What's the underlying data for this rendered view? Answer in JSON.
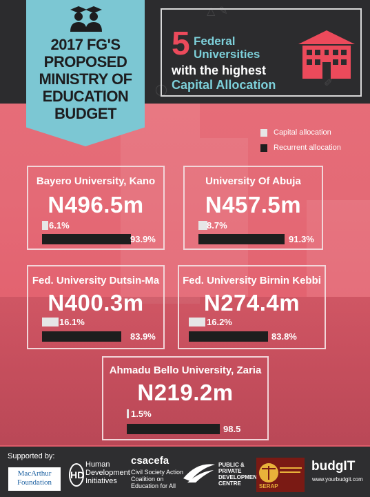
{
  "title_banner": {
    "line1": "2017 FG'S",
    "line2": "PROPOSED",
    "line3": "MINISTRY OF",
    "line4": "EDUCATION",
    "line5": "BUDGET",
    "icon": "graduates-icon",
    "color": "#7cc7d3"
  },
  "headline": {
    "number": "5",
    "line1": "Federal",
    "line2": "Universities",
    "line3": "with the highest",
    "line4": "Capital Allocation",
    "icon": "university-building-icon",
    "accent_color": "#ec4a5b",
    "teal_color": "#7dd0da"
  },
  "legend": {
    "capital_label": "Capital allocation",
    "recurrent_label": "Recurrent allocation",
    "capital_color": "#e6e6e6",
    "recurrent_color": "#1e1e1e"
  },
  "universities": [
    {
      "name": "Bayero University, Kano",
      "amount": "N496.5m",
      "capital_pct_label": "6.1%",
      "recurrent_pct_label": "93.9%",
      "capital_pct": 6.1,
      "recurrent_pct": 93.9
    },
    {
      "name": "University Of Abuja",
      "amount": "N457.5m",
      "capital_pct_label": "8.7%",
      "recurrent_pct_label": "91.3%",
      "capital_pct": 8.7,
      "recurrent_pct": 91.3
    },
    {
      "name": "Fed. University Dutsin-Ma",
      "amount": "N400.3m",
      "capital_pct_label": "16.1%",
      "recurrent_pct_label": "83.9%",
      "capital_pct": 16.1,
      "recurrent_pct": 83.9
    },
    {
      "name": "Fed. University Birnin Kebbi",
      "amount": "N274.4m",
      "capital_pct_label": "16.2%",
      "recurrent_pct_label": "83.8%",
      "capital_pct": 16.2,
      "recurrent_pct": 83.8
    },
    {
      "name": "Ahmadu Bello University, Zaria",
      "amount": "N219.2m",
      "capital_pct_label": "1.5%",
      "recurrent_pct_label": "98.5",
      "capital_pct": 1.5,
      "recurrent_pct": 98.5
    }
  ],
  "footer": {
    "supported_by": "Supported by:",
    "macarthur": "MacArthur Foundation",
    "hdi_mark": "HD",
    "hdi": "Human Development Initiatives",
    "csacefa_name": "csacefa",
    "csacefa_full": "Civil Society Action Coalition on Education for All",
    "ppdc": "PUBLIC & PRIVATE DEVELOPMENT CENTRE",
    "serap": "SERAP",
    "budgit_name": "budgIT",
    "budgit_url": "www.yourbudgit.com"
  }
}
